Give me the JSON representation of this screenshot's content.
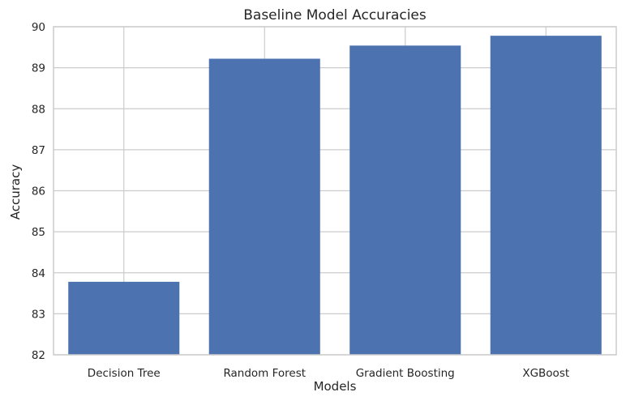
{
  "chart_data": {
    "type": "bar",
    "title": "Baseline Model Accuracies",
    "xlabel": "Models",
    "ylabel": "Accuracy",
    "categories": [
      "Decision Tree",
      "Random Forest",
      "Gradient Boosting",
      "XGBoost"
    ],
    "values": [
      83.78,
      89.22,
      89.54,
      89.78
    ],
    "ylim": [
      82,
      90
    ],
    "yticks": [
      "82",
      "83",
      "84",
      "85",
      "86",
      "87",
      "88",
      "89",
      "90"
    ],
    "bar_color": "#4c72b0",
    "grid": true,
    "legend": "none"
  }
}
